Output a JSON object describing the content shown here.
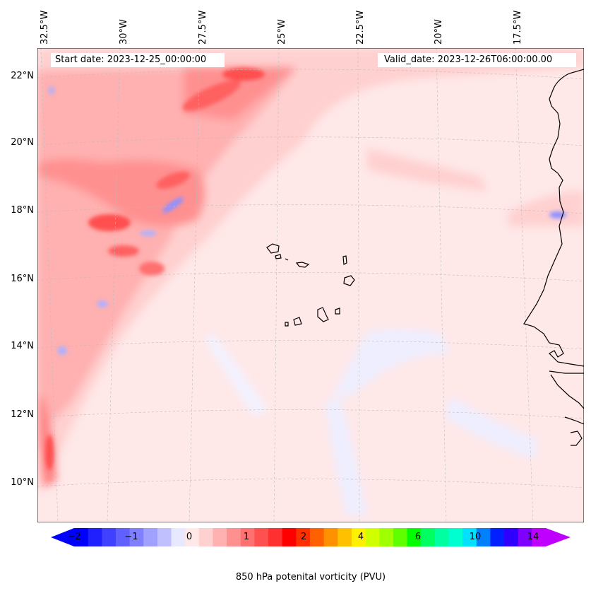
{
  "map": {
    "start_date": "Start date: 2023-12-25_00:00:00",
    "valid_date": "Valid_date: 2023-12-26T06:00:00.00",
    "lon_labels": [
      "32.5°W",
      "30°W",
      "27.5°W",
      "25°W",
      "22.5°W",
      "20°W",
      "17.5°W"
    ],
    "lat_labels": [
      "22°N",
      "20°N",
      "18°N",
      "16°N",
      "14°N",
      "12°N",
      "10°N"
    ],
    "lon_range": [
      -32.8,
      -15.5
    ],
    "lat_range": [
      8.9,
      22.8
    ],
    "gridlines": true,
    "coastlines": true,
    "features": [
      "Cape Verde islands",
      "West African coast (Mauritania, Senegal, Gambia, Guinea-Bissau)"
    ]
  },
  "colorbar": {
    "label": "850 hPa potenital vorticity (PVU)",
    "ticks": [
      "−2",
      "−1",
      "0",
      "1",
      "2",
      "4",
      "6",
      "10",
      "14"
    ],
    "orientation": "horizontal",
    "extend": "both",
    "colors": [
      "#0000ff",
      "#2020ff",
      "#4040ff",
      "#6060ff",
      "#8080ff",
      "#a0a0ff",
      "#c0c0ff",
      "#e8e8ff",
      "#ffe8e8",
      "#ffd0d0",
      "#ffb0b0",
      "#ff9090",
      "#ff7070",
      "#ff5050",
      "#ff3030",
      "#ff0000",
      "#ff3000",
      "#ff6000",
      "#ff9000",
      "#ffc000",
      "#fff000",
      "#d0ff00",
      "#a0ff00",
      "#60ff00",
      "#00ff00",
      "#00ff60",
      "#00ffa0",
      "#00ffd0",
      "#00e0ff",
      "#0080ff",
      "#0020ff",
      "#3000ff",
      "#8000ff",
      "#c000ff"
    ]
  },
  "chart_data": {
    "type": "heatmap",
    "title": "",
    "xlabel": "",
    "ylabel": "",
    "colorbar_label": "850 hPa potenital vorticity (PVU)",
    "colorbar_ticks": [
      -2,
      -1,
      0,
      1,
      2,
      4,
      6,
      10,
      14
    ],
    "x_ticks": [
      "32.5°W",
      "30°W",
      "27.5°W",
      "25°W",
      "22.5°W",
      "20°W",
      "17.5°W"
    ],
    "y_ticks": [
      "22°N",
      "20°N",
      "18°N",
      "16°N",
      "14°N",
      "12°N",
      "10°N"
    ],
    "field_summary": "Band of positive PV (up to ~2 PVU) from the northwest corner diagonally toward the southwest; background near 0 to 0.5 PVU; small negative pockets near 18°N 29°W and 18°N 16°W."
  }
}
